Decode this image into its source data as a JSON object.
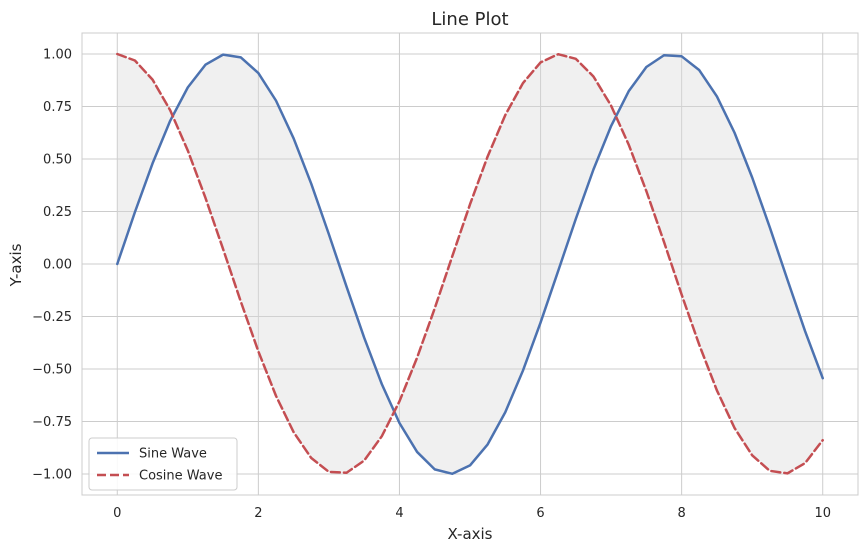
{
  "chart_data": {
    "type": "line",
    "title": "Line Plot",
    "xlabel": "X-axis",
    "ylabel": "Y-axis",
    "xlim": [
      -0.5,
      10.5
    ],
    "ylim": [
      -1.1,
      1.1
    ],
    "xticks": [
      0,
      2,
      4,
      6,
      8,
      10
    ],
    "xtick_labels": [
      "0",
      "2",
      "4",
      "6",
      "8",
      "10"
    ],
    "yticks": [
      1.0,
      0.75,
      0.5,
      0.25,
      0.0,
      -0.25,
      -0.5,
      -0.75,
      -1.0
    ],
    "ytick_labels": [
      "1.00",
      "0.75",
      "0.50",
      "0.25",
      "0.00",
      "−0.25",
      "−0.50",
      "−0.75",
      "−1.00"
    ],
    "grid": true,
    "legend_position": "lower-left",
    "fill_between": {
      "color": "#d9d9d9",
      "between": [
        "Sine Wave",
        "Cosine Wave"
      ]
    },
    "x": [
      0,
      0.25,
      0.5,
      0.75,
      1,
      1.25,
      1.5,
      1.75,
      2,
      2.25,
      2.5,
      2.75,
      3,
      3.25,
      3.5,
      3.75,
      4,
      4.25,
      4.5,
      4.75,
      5,
      5.25,
      5.5,
      5.75,
      6,
      6.25,
      6.5,
      6.75,
      7,
      7.25,
      7.5,
      7.75,
      8,
      8.25,
      8.5,
      8.75,
      9,
      9.25,
      9.5,
      9.75,
      10
    ],
    "series": [
      {
        "name": "Sine Wave",
        "color": "#4c72b0",
        "style": "solid",
        "values": [
          0,
          0.247,
          0.479,
          0.682,
          0.841,
          0.949,
          0.997,
          0.984,
          0.909,
          0.778,
          0.598,
          0.382,
          0.141,
          -0.108,
          -0.351,
          -0.572,
          -0.757,
          -0.895,
          -0.978,
          -0.999,
          -0.959,
          -0.859,
          -0.706,
          -0.508,
          -0.279,
          -0.033,
          0.215,
          0.45,
          0.657,
          0.823,
          0.938,
          0.994,
          0.989,
          0.923,
          0.798,
          0.625,
          0.412,
          0.174,
          -0.075,
          -0.32,
          -0.544
        ]
      },
      {
        "name": "Cosine Wave",
        "color": "#c44e52",
        "style": "dashed",
        "values": [
          1,
          0.969,
          0.878,
          0.732,
          0.54,
          0.315,
          0.071,
          -0.178,
          -0.416,
          -0.628,
          -0.801,
          -0.924,
          -0.99,
          -0.994,
          -0.936,
          -0.82,
          -0.654,
          -0.446,
          -0.211,
          0.038,
          0.284,
          0.512,
          0.709,
          0.861,
          0.96,
          0.999,
          0.977,
          0.893,
          0.754,
          0.568,
          0.347,
          0.105,
          -0.146,
          -0.385,
          -0.602,
          -0.781,
          -0.911,
          -0.985,
          -0.997,
          -0.948,
          -0.839
        ]
      }
    ]
  }
}
